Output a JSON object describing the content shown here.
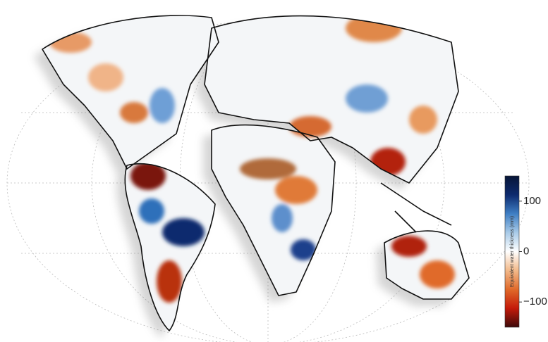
{
  "colorbar": {
    "label": "Equivalent water thickness (mm)",
    "lim": [
      -150,
      150
    ],
    "ticks": [
      100,
      0,
      {
        "value": -100,
        "label": "−100"
      }
    ],
    "colors": [
      "#3d0a0a",
      "#c41a0a",
      "#e06a2a",
      "#f2b98a",
      "#ffffff",
      "#a9cbe8",
      "#3f7fc4",
      "#0d2a6e",
      "#071536"
    ]
  }
}
